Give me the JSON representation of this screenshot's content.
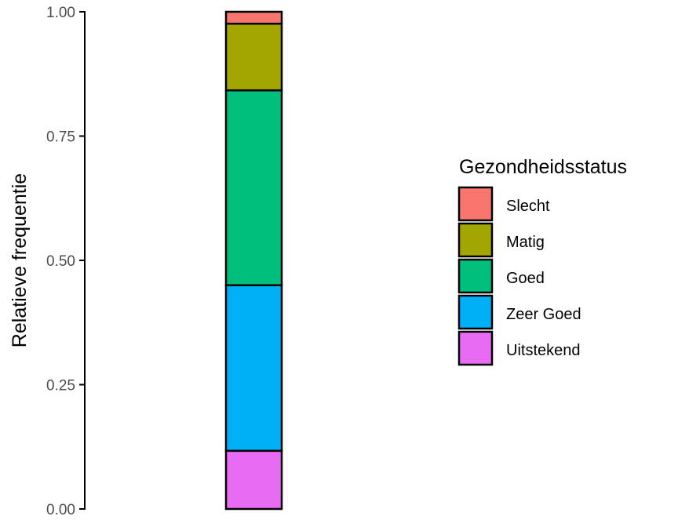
{
  "chart_data": {
    "type": "bar",
    "stacked": true,
    "position": "fill",
    "xlabel": "",
    "ylabel": "Relatieve frequentie",
    "ylim": [
      0,
      1
    ],
    "yticks": [
      {
        "value": 0,
        "label": "0.00"
      },
      {
        "value": 0.25,
        "label": "0.25"
      },
      {
        "value": 0.5,
        "label": "0.50"
      },
      {
        "value": 0.75,
        "label": "0.75"
      },
      {
        "value": 1,
        "label": "1.00"
      }
    ],
    "grid": false,
    "legend": {
      "title": "Gezondheidsstatus",
      "position": "right"
    },
    "series": [
      {
        "name": "Slecht",
        "value": 0.024,
        "color": "#F8766D"
      },
      {
        "name": "Matig",
        "value": 0.134,
        "color": "#A3A500"
      },
      {
        "name": "Goed",
        "value": 0.392,
        "color": "#00BF7D"
      },
      {
        "name": "Zeer Goed",
        "value": 0.333,
        "color": "#00B0F6"
      },
      {
        "name": "Uitstekend",
        "value": 0.117,
        "color": "#E76BF3"
      }
    ],
    "stack_order_bottom_to_top": [
      "Uitstekend",
      "Zeer Goed",
      "Goed",
      "Matig",
      "Slecht"
    ]
  }
}
